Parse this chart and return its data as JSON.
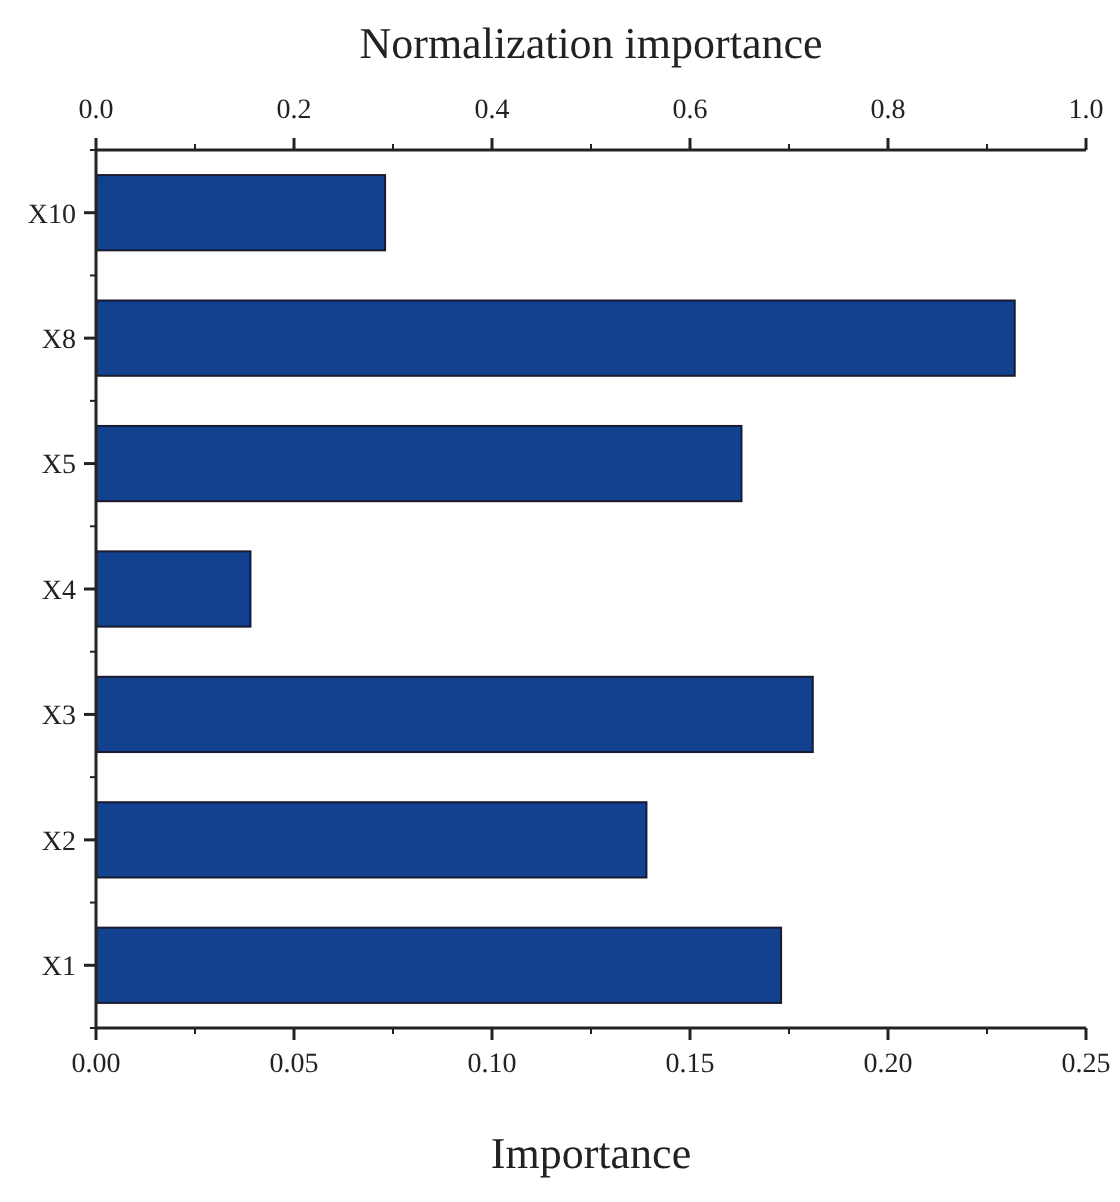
{
  "chart_data": {
    "type": "bar",
    "orientation": "horizontal",
    "xlabel": "Importance",
    "x2label": "Normalization importance",
    "categories": [
      "X10",
      "X8",
      "X5",
      "X4",
      "X3",
      "X2",
      "X1"
    ],
    "values": [
      0.073,
      0.232,
      0.163,
      0.039,
      0.181,
      0.139,
      0.173
    ],
    "color": "#11418f",
    "xlim": [
      0,
      0.25
    ],
    "xticks": [
      {
        "value": 0,
        "label": "0.00"
      },
      {
        "value": 0.05,
        "label": "0.05"
      },
      {
        "value": 0.1,
        "label": "0.10"
      },
      {
        "value": 0.15,
        "label": "0.15"
      },
      {
        "value": 0.2,
        "label": "0.20"
      },
      {
        "value": 0.25,
        "label": "0.25"
      }
    ],
    "x2lim": [
      0,
      1
    ],
    "x2ticks": [
      {
        "value": 0,
        "label": "0.0"
      },
      {
        "value": 0.2,
        "label": "0.2"
      },
      {
        "value": 0.4,
        "label": "0.4"
      },
      {
        "value": 0.6,
        "label": "0.6"
      },
      {
        "value": 0.8,
        "label": "0.8"
      },
      {
        "value": 1,
        "label": "1.0"
      }
    ],
    "grid": false
  }
}
